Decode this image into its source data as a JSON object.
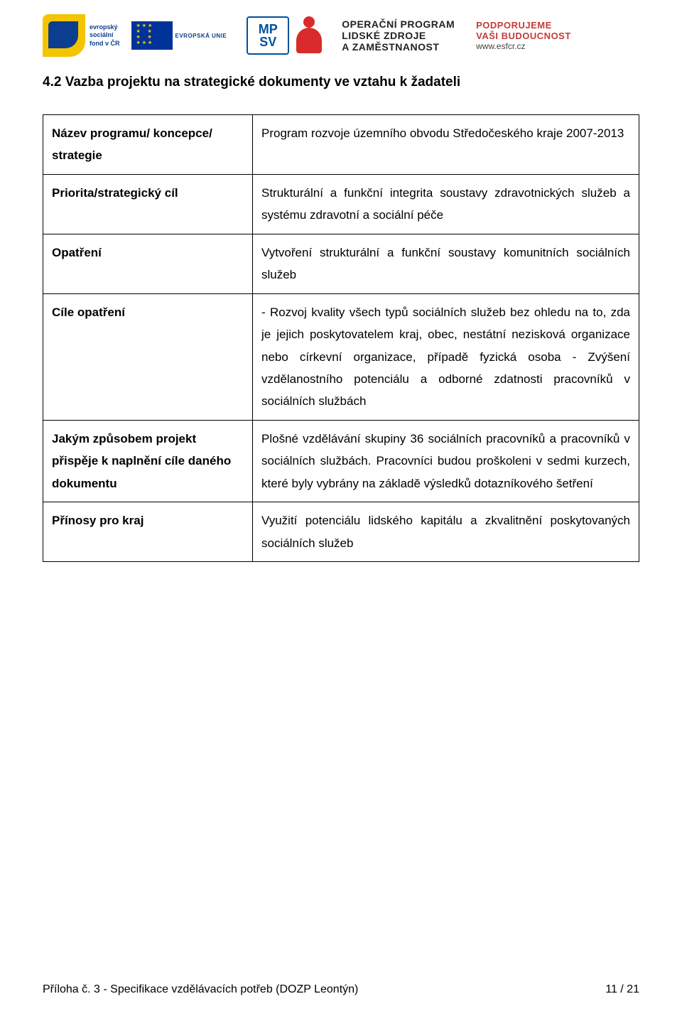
{
  "header": {
    "esf_text_line1": "evropský",
    "esf_text_line2": "sociální",
    "esf_text_line3": "fond v ČR",
    "eu_label": "EVROPSKÁ UNIE",
    "mpsv_top": "MP",
    "mpsv_bottom": "SV",
    "op_line1": "OPERAČNÍ PROGRAM",
    "op_line2": "LIDSKÉ ZDROJE",
    "op_line3": "A ZAMĚSTNANOST",
    "support_line1": "PODPORUJEME",
    "support_line2": "VAŠI BUDOUCNOST",
    "support_line3": "www.esfcr.cz"
  },
  "section_title": "4.2 Vazba projektu na strategické dokumenty ve vztahu k žadateli",
  "rows": [
    {
      "label": "Název programu/ koncepce/ strategie",
      "value": "Program rozvoje územního obvodu Středočeského kraje 2007-2013"
    },
    {
      "label": "Priorita/strategický cíl",
      "value": "Strukturální a funkční integrita soustavy zdravotnických služeb a systému zdravotní a sociální péče"
    },
    {
      "label": "Opatření",
      "value": "Vytvoření strukturální a funkční soustavy komunitních sociálních služeb"
    },
    {
      "label": "Cíle opatření",
      "value": "- Rozvoj kvality všech typů sociálních služeb bez ohledu na to, zda je jejich poskytovatelem kraj, obec, nestátní nezisková organizace nebo církevní organizace, případě fyzická osoba\n- Zvýšení vzdělanostního potenciálu a odborné zdatnosti pracovníků v sociálních službách"
    },
    {
      "label": "Jakým způsobem projekt přispěje k naplnění cíle daného dokumentu",
      "value": "Plošné vzdělávání skupiny 36 sociálních pracovníků a pracovníků v sociálních službách. Pracovníci budou proškoleni v sedmi kurzech, které byly vybrány na základě výsledků dotazníkového šetření"
    },
    {
      "label": "Přínosy pro kraj",
      "value": "Využití potenciálu lidského kapitálu a zkvalitnění poskytovaných sociálních služeb"
    }
  ],
  "footer": {
    "left": "Příloha č. 3 - Specifikace vzdělávacích potřeb (DOZP Leontýn)",
    "right": "11 / 21"
  }
}
